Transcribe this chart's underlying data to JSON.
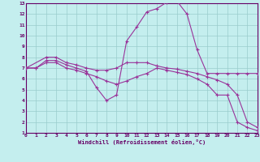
{
  "xlabel": "Windchill (Refroidissement éolien,°C)",
  "bg_color": "#c4eeee",
  "line_color": "#993399",
  "grid_color": "#99cccc",
  "axis_color": "#660066",
  "xlim": [
    0,
    23
  ],
  "ylim": [
    1,
    13
  ],
  "xticks": [
    0,
    1,
    2,
    3,
    4,
    5,
    6,
    7,
    8,
    9,
    10,
    11,
    12,
    13,
    14,
    15,
    16,
    17,
    18,
    19,
    20,
    21,
    22,
    23
  ],
  "yticks": [
    1,
    2,
    3,
    4,
    5,
    6,
    7,
    8,
    9,
    10,
    11,
    12,
    13
  ],
  "lines": [
    {
      "x": [
        0,
        1,
        2,
        3,
        4,
        5,
        6,
        7,
        8,
        9,
        10,
        11,
        12,
        13,
        14,
        15,
        16,
        17,
        18,
        19,
        20,
        21,
        22,
        23
      ],
      "y": [
        7.0,
        7.0,
        7.7,
        7.7,
        7.3,
        7.0,
        6.7,
        5.2,
        4.0,
        4.5,
        9.5,
        10.8,
        12.2,
        12.5,
        13.1,
        13.2,
        12.0,
        8.7,
        6.5,
        6.5,
        6.5,
        6.5,
        6.5,
        6.5
      ]
    },
    {
      "x": [
        0,
        2,
        3,
        4,
        5,
        6,
        7,
        8,
        9,
        10,
        11,
        12,
        13,
        14,
        15,
        16,
        17,
        18,
        19,
        20,
        21,
        22,
        23
      ],
      "y": [
        7.0,
        8.0,
        8.0,
        7.5,
        7.3,
        7.0,
        6.8,
        6.8,
        7.0,
        7.5,
        7.5,
        7.5,
        7.2,
        7.0,
        6.9,
        6.7,
        6.5,
        6.2,
        5.9,
        5.5,
        4.5,
        2.0,
        1.5
      ]
    },
    {
      "x": [
        0,
        1,
        2,
        3,
        4,
        5,
        6,
        7,
        8,
        9,
        10,
        11,
        12,
        13,
        14,
        15,
        16,
        17,
        18,
        19,
        20,
        21,
        22,
        23
      ],
      "y": [
        7.0,
        7.0,
        7.5,
        7.5,
        7.0,
        6.8,
        6.5,
        6.2,
        5.8,
        5.5,
        5.8,
        6.2,
        6.5,
        7.0,
        6.8,
        6.6,
        6.4,
        6.0,
        5.5,
        4.5,
        4.5,
        2.0,
        1.5,
        1.2
      ]
    }
  ]
}
